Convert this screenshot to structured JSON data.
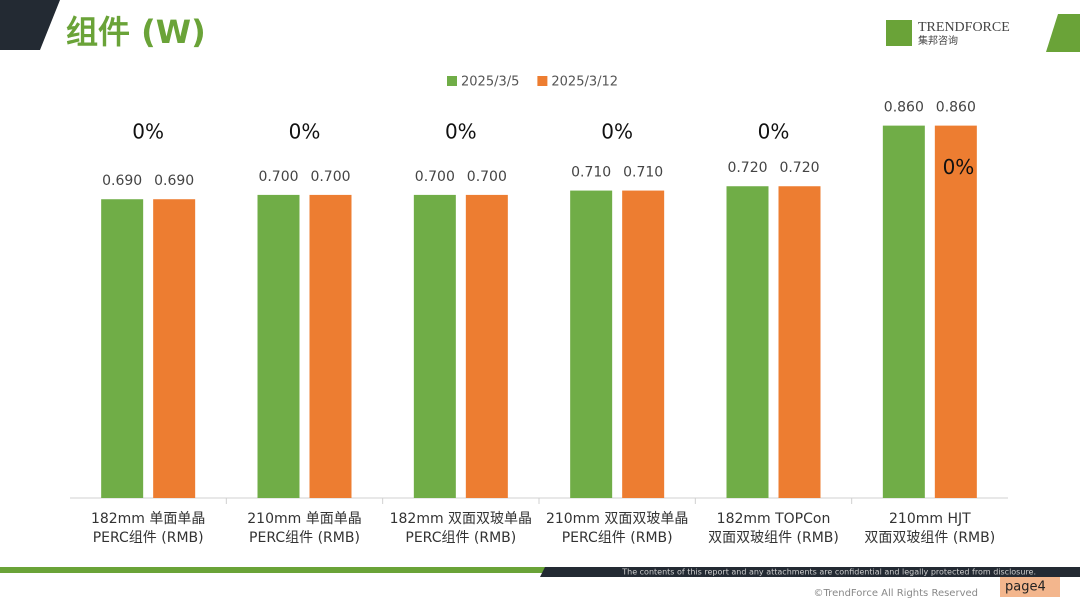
{
  "header": {
    "title": "组件 (W)",
    "brand": "TRENDFORCE",
    "brand_cn": "集邦咨询"
  },
  "footer": {
    "disclaimer": "The contents of this report and any attachments are confidential and legally protected from disclosure.",
    "copyright": "©TrendForce All Rights Reserved",
    "page": "page4"
  },
  "chart_data": {
    "type": "bar",
    "categories": [
      [
        "182mm 单面单晶",
        "PERC组件 (RMB)"
      ],
      [
        "210mm 单面单晶",
        "PERC组件 (RMB)"
      ],
      [
        "182mm 双面双玻单晶",
        "PERC组件 (RMB)"
      ],
      [
        "210mm 双面双玻单晶",
        "PERC组件 (RMB)"
      ],
      [
        "182mm TOPCon",
        "双面双玻组件 (RMB)"
      ],
      [
        "210mm HJT",
        "双面双玻组件 (RMB)"
      ]
    ],
    "series": [
      {
        "name": "2025/3/5",
        "color": "#70ad47",
        "values": [
          0.69,
          0.7,
          0.7,
          0.71,
          0.72,
          0.86
        ],
        "value_labels": [
          "0.690",
          "0.700",
          "0.700",
          "0.710",
          "0.720",
          "0.860"
        ]
      },
      {
        "name": "2025/3/12",
        "color": "#ed7d31",
        "values": [
          0.69,
          0.7,
          0.7,
          0.71,
          0.72,
          0.86
        ],
        "value_labels": [
          "0.690",
          "0.700",
          "0.700",
          "0.710",
          "0.720",
          "0.860"
        ]
      }
    ],
    "annotations": [
      "0%",
      "0%",
      "0%",
      "0%",
      "0%",
      "0%"
    ],
    "ylim": [
      0,
      1
    ],
    "legend": "top"
  }
}
